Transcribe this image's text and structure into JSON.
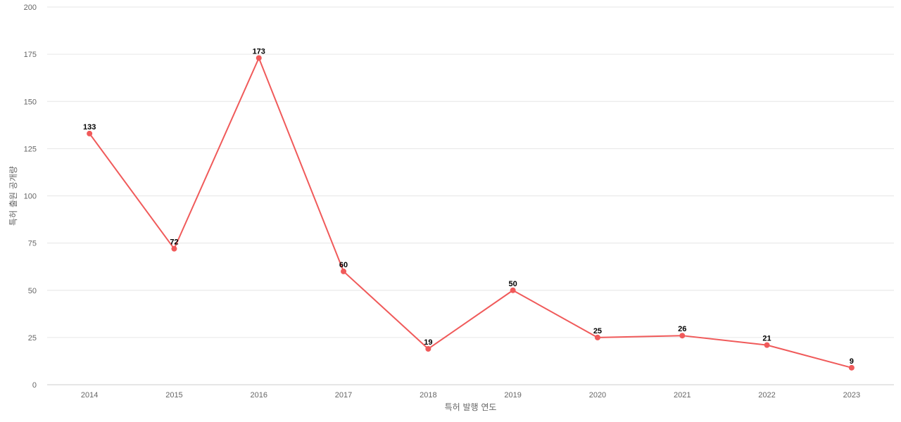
{
  "chart_data": {
    "type": "line",
    "title": "",
    "xlabel": "특허 발행 연도",
    "ylabel": "특허 출원 공개량",
    "x": [
      "2014",
      "2015",
      "2016",
      "2017",
      "2018",
      "2019",
      "2020",
      "2021",
      "2022",
      "2023"
    ],
    "series": [
      {
        "values": [
          133,
          72,
          173,
          60,
          19,
          50,
          25,
          26,
          21,
          9
        ]
      }
    ],
    "ylim": [
      0,
      200
    ],
    "yticks": [
      0,
      25,
      50,
      75,
      100,
      125,
      150,
      175,
      200
    ],
    "grid": true,
    "data_labels": true,
    "colors": {
      "line": "#f05a5a",
      "marker": "#f05a5a",
      "grid": "#e6e6e6",
      "label": "#000000"
    }
  }
}
